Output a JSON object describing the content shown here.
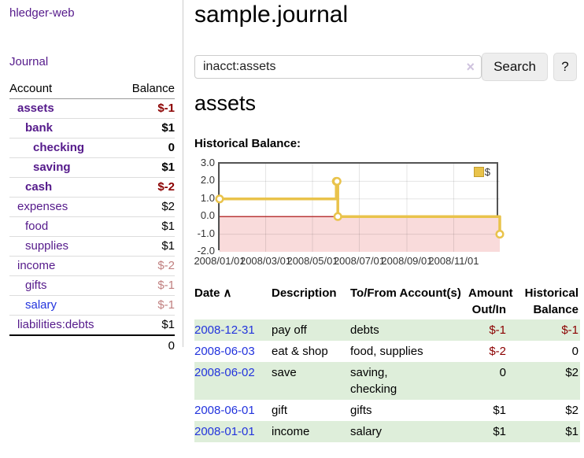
{
  "app": {
    "brand": "hledger-web",
    "nav_journal": "Journal"
  },
  "sidebar_table": {
    "account_header": "Account",
    "balance_header": "Balance",
    "rows": [
      {
        "label": "assets",
        "indent": 1,
        "bold": true,
        "link": "purple",
        "balance": "$-1",
        "tone": "neg"
      },
      {
        "label": "bank",
        "indent": 2,
        "bold": true,
        "link": "purple",
        "balance": "$1",
        "tone": "pos"
      },
      {
        "label": "checking",
        "indent": 3,
        "bold": true,
        "link": "purple",
        "balance": "0",
        "tone": "pos"
      },
      {
        "label": "saving",
        "indent": 3,
        "bold": true,
        "link": "purple",
        "balance": "$1",
        "tone": "pos"
      },
      {
        "label": "cash",
        "indent": 2,
        "bold": true,
        "link": "purple",
        "balance": "$-2",
        "tone": "neg"
      },
      {
        "label": "expenses",
        "indent": 1,
        "bold": false,
        "link": "purple",
        "balance": "$2",
        "tone": "pos"
      },
      {
        "label": "food",
        "indent": 2,
        "bold": false,
        "link": "purple",
        "balance": "$1",
        "tone": "pos"
      },
      {
        "label": "supplies",
        "indent": 2,
        "bold": false,
        "link": "purple",
        "balance": "$1",
        "tone": "pos"
      },
      {
        "label": "income",
        "indent": 1,
        "bold": false,
        "link": "purple",
        "balance": "$-2",
        "tone": "neg-soft"
      },
      {
        "label": "gifts",
        "indent": 2,
        "bold": false,
        "link": "purple",
        "balance": "$-1",
        "tone": "neg-soft"
      },
      {
        "label": "salary",
        "indent": 2,
        "bold": false,
        "link": "blue",
        "balance": "$-1",
        "tone": "neg-soft"
      },
      {
        "label": "liabilities:debts",
        "indent": 1,
        "bold": false,
        "link": "purple",
        "balance": "$1",
        "tone": "pos"
      }
    ],
    "total": "0"
  },
  "header": {
    "title": "sample.journal"
  },
  "search": {
    "value": "inacct:assets",
    "clear_icon": "×",
    "button": "Search",
    "help": "?"
  },
  "account_page": {
    "title": "assets",
    "chart_label": "Historical Balance:"
  },
  "chart_data": {
    "type": "line",
    "step": true,
    "title": "Historical Balance",
    "legend_label": "$",
    "legend_position": "top-right",
    "xrange": [
      "2008-01-01",
      "2008-12-31"
    ],
    "ylim": [
      -2.0,
      3.0
    ],
    "yticks": [
      "3.0",
      "2.0",
      "1.0",
      "0.0",
      "-1.0",
      "-2.0"
    ],
    "xticks": [
      "2008/01/01",
      "2008/03/01",
      "2008/05/01",
      "2008/07/01",
      "2008/09/01",
      "2008/11/01"
    ],
    "grid": true,
    "negative_region_shaded": true,
    "series": [
      {
        "name": "$",
        "points": [
          [
            "2008-01-01",
            1
          ],
          [
            "2008-06-01",
            2
          ],
          [
            "2008-06-02",
            2
          ],
          [
            "2008-06-03",
            0
          ],
          [
            "2008-12-31",
            -1
          ]
        ]
      }
    ]
  },
  "register": {
    "headers": [
      {
        "label": "Date",
        "sort_icon": "∧"
      },
      {
        "label": "Description"
      },
      {
        "label": "To/From Account(s)"
      },
      {
        "label": "Amount Out/In"
      },
      {
        "label": "Historical Balance"
      }
    ],
    "rows": [
      {
        "date": "2008-12-31",
        "description": "pay off",
        "accounts": "debts",
        "amount": "$-1",
        "amount_neg": true,
        "balance": "$-1",
        "balance_neg": true,
        "stripe": true
      },
      {
        "date": "2008-06-03",
        "description": "eat & shop",
        "accounts": "food, supplies",
        "amount": "$-2",
        "amount_neg": true,
        "balance": "0",
        "balance_neg": false,
        "stripe": false
      },
      {
        "date": "2008-06-02",
        "description": "save",
        "accounts": "saving,\nchecking",
        "amount": "0",
        "amount_neg": false,
        "balance": "$2",
        "balance_neg": false,
        "stripe": true
      },
      {
        "date": "2008-06-01",
        "description": "gift",
        "accounts": "gifts",
        "amount": "$1",
        "amount_neg": false,
        "balance": "$2",
        "balance_neg": false,
        "stripe": false
      },
      {
        "date": "2008-01-01",
        "description": "income",
        "accounts": "salary",
        "amount": "$1",
        "amount_neg": false,
        "balance": "$1",
        "balance_neg": false,
        "stripe": true
      }
    ]
  },
  "colors": {
    "purple": "#551a8b",
    "link_blue": "#2233dd",
    "negative": "#8b0000",
    "negative_soft": "#c07f7f",
    "row_green": "#deeeda",
    "chart_gold": "#e9c34b",
    "chart_gold_border": "#c29d2f",
    "zero_red": "#a40000",
    "negative_region_pink": "#f9dbdb",
    "plot_border": "#545454",
    "button_bg": "#eeeeee",
    "divider": "#cccccc"
  }
}
